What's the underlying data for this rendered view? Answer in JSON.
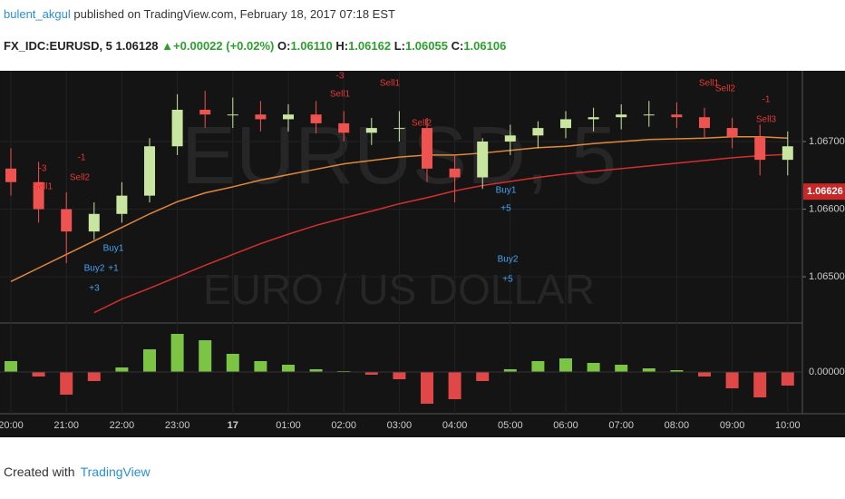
{
  "header": {
    "user": "bulent_akgul",
    "published": "published on TradingView.com, February 18, 2017 07:18 EST",
    "symbol": "FX_IDC:EURUSD, 5",
    "price": "1.06128",
    "change": "+0.00022 (+0.02%)",
    "o_label": "O:",
    "o": "1.06110",
    "h_label": "H:",
    "h": "1.06162",
    "l_label": "L:",
    "l": "1.06055",
    "c_label": "C:",
    "c": "1.06106"
  },
  "footer": {
    "created": "Created with",
    "brand": "TradingView"
  },
  "chart_data": [
    {
      "type": "candlestick",
      "watermark": "EURUSD, 5",
      "watermark2": "EURO / US DOLLAR",
      "categories": [
        "20:00",
        null,
        "21:00",
        null,
        "22:00",
        null,
        "23:00",
        null,
        "17",
        null,
        "01:00",
        null,
        "02:00",
        null,
        "03:00",
        null,
        "04:00",
        null,
        "05:00",
        null,
        "06:00",
        null,
        "07:00",
        null,
        "08:00",
        null,
        "09:00",
        null,
        "10:00"
      ],
      "open": [
        1.0666,
        1.0664,
        1.066,
        1.06567,
        1.06593,
        1.0662,
        1.06693,
        1.06747,
        1.0674,
        1.0674,
        1.06733,
        1.0674,
        1.06727,
        1.06713,
        1.0672,
        1.0672,
        1.0666,
        1.06647,
        1.067,
        1.06709,
        1.0672,
        1.06733,
        1.06736,
        1.0674,
        1.0674,
        1.06736,
        1.0672,
        1.06707,
        1.06673
      ],
      "high": [
        1.0669,
        1.0667,
        1.06625,
        1.0661,
        1.0664,
        1.06705,
        1.0677,
        1.06775,
        1.06765,
        1.0676,
        1.06755,
        1.0676,
        1.06745,
        1.06735,
        1.06745,
        1.06735,
        1.0668,
        1.06705,
        1.06725,
        1.0673,
        1.06745,
        1.0675,
        1.06755,
        1.0676,
        1.06758,
        1.0675,
        1.06735,
        1.06725,
        1.06715
      ],
      "low": [
        1.0662,
        1.0658,
        1.0652,
        1.06555,
        1.0658,
        1.0661,
        1.0668,
        1.0672,
        1.0672,
        1.06715,
        1.06715,
        1.06712,
        1.067,
        1.06695,
        1.067,
        1.0664,
        1.0661,
        1.0663,
        1.0668,
        1.0669,
        1.06705,
        1.06715,
        1.06718,
        1.06722,
        1.0672,
        1.06705,
        1.0669,
        1.0665,
        1.0665
      ],
      "close": [
        1.0664,
        1.066,
        1.06567,
        1.06593,
        1.0662,
        1.06693,
        1.06747,
        1.0674,
        1.0674,
        1.06733,
        1.0674,
        1.06727,
        1.06713,
        1.0672,
        1.0672,
        1.0666,
        1.06647,
        1.067,
        1.06709,
        1.0672,
        1.06733,
        1.06736,
        1.0674,
        1.0674,
        1.06736,
        1.0672,
        1.06707,
        1.06673,
        1.06693
      ],
      "up_color": "#c8e6a0",
      "down_color": "#ef5350",
      "series": [
        {
          "color": "#e0893a",
          "values": [
            1.06493,
            1.06513,
            1.06533,
            1.06553,
            1.06573,
            1.06593,
            1.06611,
            1.06624,
            1.06633,
            1.06643,
            1.06651,
            1.06659,
            1.06667,
            1.06672,
            1.06677,
            1.0668,
            1.0668,
            1.06683,
            1.06687,
            1.06691,
            1.06693,
            1.06697,
            1.067,
            1.06703,
            1.06704,
            1.06705,
            1.06707,
            1.06707,
            1.06705
          ]
        },
        {
          "color": "#d32f2f",
          "values": [
            null,
            null,
            null,
            1.06447,
            1.06467,
            1.06483,
            1.065,
            1.06517,
            1.06533,
            1.06549,
            1.06563,
            1.06576,
            1.06587,
            1.06597,
            1.06608,
            1.06617,
            1.06627,
            1.06635,
            1.06641,
            1.06647,
            1.06652,
            1.06656,
            1.0666,
            1.06664,
            1.06668,
            1.06672,
            1.06676,
            1.06679,
            1.06681
          ]
        }
      ],
      "annotations": [
        "-3",
        "Sell1",
        "-1",
        "Sell2",
        "Buy2",
        "+3",
        "Buy1",
        "+1",
        "-3",
        "Sell1",
        "Sell1",
        "Sell2",
        "Buy1",
        "+5",
        "Buy2",
        "+5",
        "Sell1",
        "Sell2",
        "-1",
        "Sell3"
      ],
      "ylim": [
        1.06433,
        1.06802
      ],
      "yticks": [
        {
          "value": 1.065,
          "label": "1.06500"
        },
        {
          "value": 1.066,
          "label": "1.06600"
        },
        {
          "value": 1.067,
          "label": "1.06700"
        }
      ],
      "last_price": {
        "value": 1.06626,
        "label": "1.06626"
      },
      "grid": true
    },
    {
      "type": "histogram",
      "pos_color": "#7cc444",
      "neg_color": "#e04848",
      "values": [
        0.00012,
        -5e-05,
        -0.00025,
        -0.0001,
        5e-05,
        0.00025,
        0.00042,
        0.00035,
        0.0002,
        0.00012,
        8e-05,
        3e-05,
        1e-05,
        -3e-05,
        -8e-05,
        -0.00035,
        -0.0003,
        -0.0001,
        3e-05,
        0.00012,
        0.00015,
        0.0001,
        8e-05,
        4e-05,
        2e-05,
        -5e-05,
        -0.00018,
        -0.00028,
        -0.00015
      ],
      "ylim": [
        -0.00045,
        0.00052
      ],
      "yticks": [
        {
          "value": 0,
          "label": "0.00000"
        }
      ]
    }
  ]
}
